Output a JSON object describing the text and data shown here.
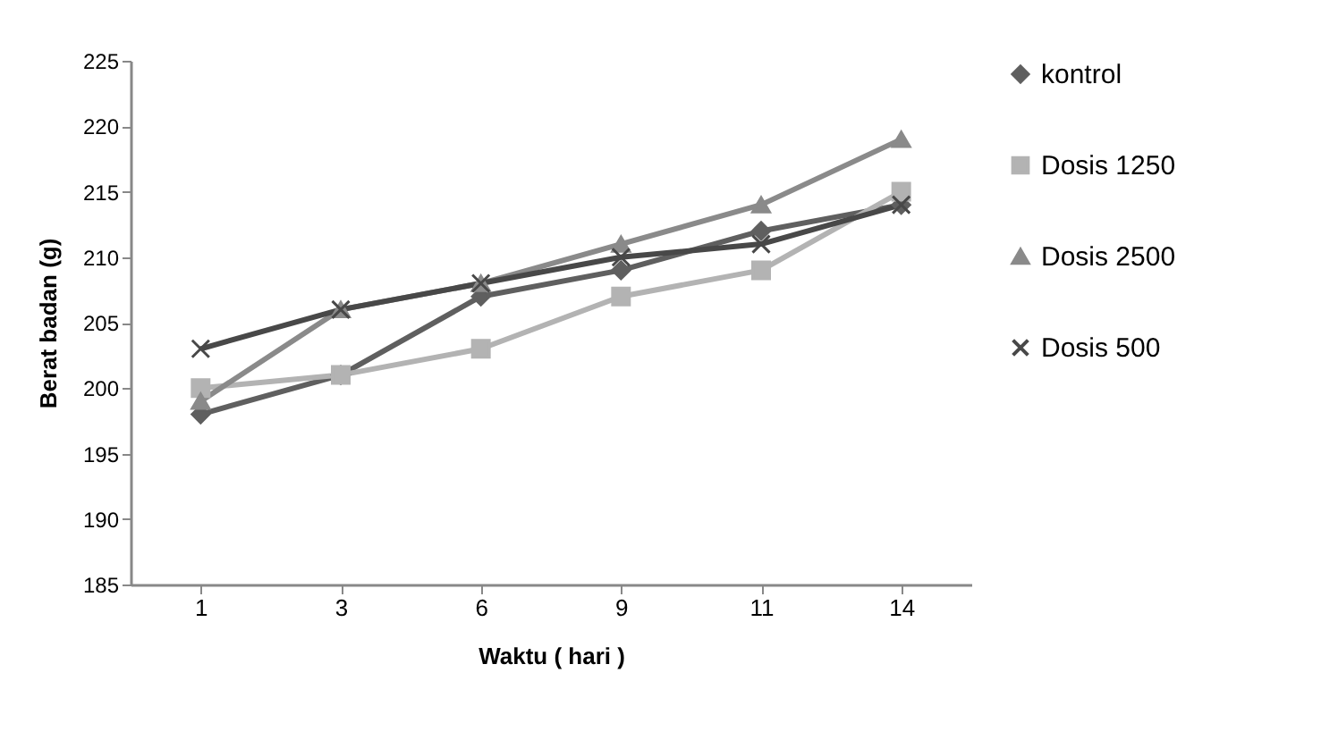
{
  "chart_data": {
    "type": "line",
    "xlabel": "Waktu ( hari )",
    "ylabel": "Berat badan  (g)",
    "categories": [
      "1",
      "3",
      "6",
      "9",
      "11",
      "14"
    ],
    "series": [
      {
        "name": "kontrol",
        "color": "#5f5f5f",
        "marker": "diamond",
        "values": [
          198,
          201,
          207,
          209,
          212,
          214
        ]
      },
      {
        "name": "Dosis 1250",
        "color": "#b3b3b3",
        "marker": "square",
        "values": [
          200,
          201,
          203,
          207,
          209,
          215
        ]
      },
      {
        "name": "Dosis 2500",
        "color": "#8a8a8a",
        "marker": "triangle",
        "values": [
          199,
          206,
          208,
          211,
          214,
          219
        ]
      },
      {
        "name": "Dosis 500",
        "color": "#484848",
        "marker": "cross",
        "values": [
          203,
          206,
          208,
          210,
          211,
          214
        ]
      }
    ],
    "ylim": [
      185,
      225
    ],
    "yticks": [
      185,
      190,
      195,
      200,
      205,
      210,
      215,
      220,
      225
    ],
    "legend": "right",
    "grid": false,
    "line_style": "solid"
  }
}
